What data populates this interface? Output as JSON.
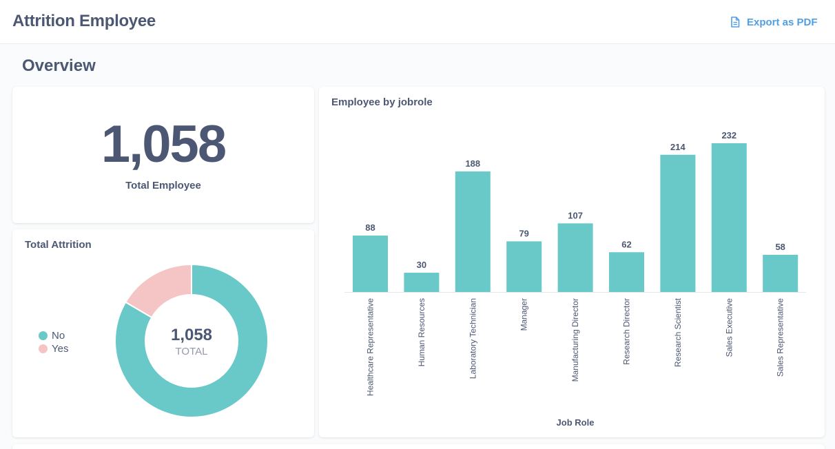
{
  "header": {
    "title": "Attrition Employee",
    "export_label": "Export as PDF"
  },
  "section": {
    "title": "Overview"
  },
  "total_card": {
    "value": "1,058",
    "label": "Total Employee"
  },
  "attrition_card": {
    "title": "Total Attrition",
    "center_value": "1,058",
    "center_label": "TOTAL",
    "legend": [
      {
        "label": "No",
        "color": "#69c8c8"
      },
      {
        "label": "Yes",
        "color": "#f5c4c4"
      }
    ]
  },
  "bar_card": {
    "title": "Employee by jobrole"
  },
  "chart_data": [
    {
      "type": "pie",
      "title": "Total Attrition",
      "categories": [
        "No",
        "Yes"
      ],
      "values": [
        883,
        175
      ],
      "total": 1058,
      "colors": [
        "#69c8c8",
        "#f5c4c4"
      ],
      "legend_position": "left"
    },
    {
      "type": "bar",
      "title": "Employee by jobrole",
      "xlabel": "Job Role",
      "ylabel": "",
      "categories": [
        "Healthcare Representative",
        "Human Resources",
        "Laboratory Technician",
        "Manager",
        "Manufacturing Director",
        "Research Director",
        "Research Scientist",
        "Sales Executive",
        "Sales Representative"
      ],
      "values": [
        88,
        30,
        188,
        79,
        107,
        62,
        214,
        232,
        58
      ],
      "ylim": [
        0,
        232
      ],
      "color": "#69c8c8",
      "grid": false
    }
  ]
}
